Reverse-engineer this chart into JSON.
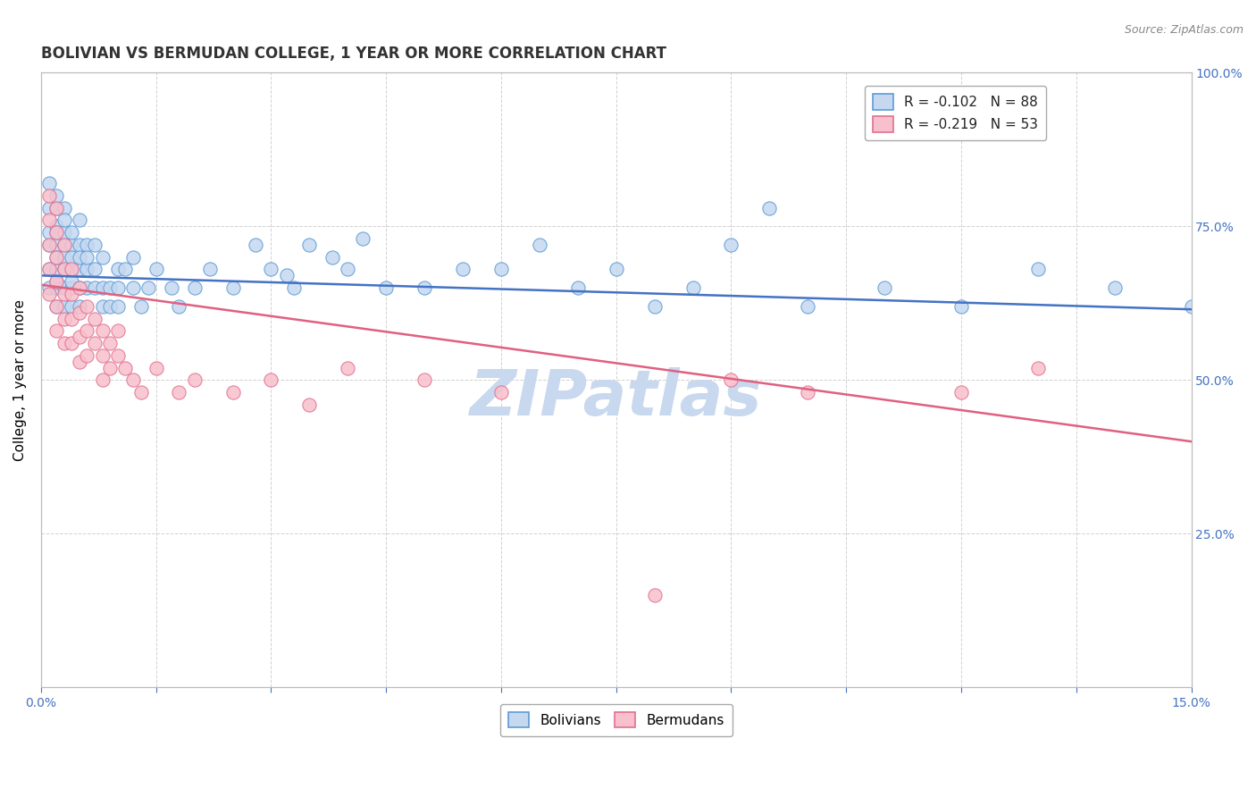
{
  "title": "BOLIVIAN VS BERMUDAN COLLEGE, 1 YEAR OR MORE CORRELATION CHART",
  "source_text": "Source: ZipAtlas.com",
  "ylabel": "College, 1 year or more",
  "xlim": [
    0.0,
    0.15
  ],
  "ylim": [
    0.0,
    1.0
  ],
  "xtick_positions": [
    0.0,
    0.015,
    0.03,
    0.045,
    0.06,
    0.075,
    0.09,
    0.105,
    0.12,
    0.135,
    0.15
  ],
  "xticklabels": [
    "0.0%",
    "",
    "",
    "",
    "",
    "",
    "",
    "",
    "",
    "",
    "15.0%"
  ],
  "ytick_positions": [
    0.0,
    0.25,
    0.5,
    0.75,
    1.0
  ],
  "yticklabels_right": [
    "",
    "25.0%",
    "50.0%",
    "75.0%",
    "100.0%"
  ],
  "legend_line1": "R = -0.102   N = 88",
  "legend_line2": "R = -0.219   N = 53",
  "color_bolivian_fill": "#c5d8f0",
  "color_bolivian_edge": "#5b9bd5",
  "color_bermudan_fill": "#f8c0cc",
  "color_bermudan_edge": "#e07090",
  "line_color_bolivian": "#4472c4",
  "line_color_bermudan": "#e06080",
  "watermark": "ZIPatlas",
  "watermark_color": "#c8d8ee",
  "grid_color": "#cccccc",
  "background_color": "#ffffff",
  "title_fontsize": 12,
  "axis_label_fontsize": 11,
  "tick_fontsize": 10,
  "legend_fontsize": 11,
  "scatter_size": 120,
  "line_y0_bolivian": 0.67,
  "line_y1_bolivian": 0.615,
  "line_y0_bermudan": 0.655,
  "line_y1_bermudan": 0.4,
  "bolivian_x": [
    0.001,
    0.001,
    0.001,
    0.001,
    0.001,
    0.001,
    0.002,
    0.002,
    0.002,
    0.002,
    0.002,
    0.002,
    0.002,
    0.002,
    0.002,
    0.002,
    0.003,
    0.003,
    0.003,
    0.003,
    0.003,
    0.003,
    0.003,
    0.003,
    0.004,
    0.004,
    0.004,
    0.004,
    0.004,
    0.004,
    0.004,
    0.005,
    0.005,
    0.005,
    0.005,
    0.005,
    0.005,
    0.006,
    0.006,
    0.006,
    0.006,
    0.007,
    0.007,
    0.007,
    0.008,
    0.008,
    0.008,
    0.009,
    0.009,
    0.01,
    0.01,
    0.01,
    0.011,
    0.012,
    0.012,
    0.013,
    0.014,
    0.015,
    0.017,
    0.018,
    0.02,
    0.022,
    0.025,
    0.028,
    0.03,
    0.033,
    0.04,
    0.05,
    0.06,
    0.065,
    0.07,
    0.075,
    0.08,
    0.085,
    0.09,
    0.095,
    0.1,
    0.11,
    0.12,
    0.13,
    0.14,
    0.15,
    0.035,
    0.055,
    0.045,
    0.038,
    0.032,
    0.042
  ],
  "bolivian_y": [
    0.72,
    0.68,
    0.65,
    0.78,
    0.74,
    0.82,
    0.75,
    0.72,
    0.68,
    0.65,
    0.62,
    0.78,
    0.8,
    0.7,
    0.66,
    0.74,
    0.72,
    0.68,
    0.65,
    0.62,
    0.7,
    0.74,
    0.78,
    0.76,
    0.72,
    0.68,
    0.65,
    0.62,
    0.7,
    0.74,
    0.66,
    0.68,
    0.65,
    0.62,
    0.72,
    0.7,
    0.76,
    0.68,
    0.65,
    0.72,
    0.7,
    0.65,
    0.68,
    0.72,
    0.62,
    0.65,
    0.7,
    0.65,
    0.62,
    0.68,
    0.65,
    0.62,
    0.68,
    0.65,
    0.7,
    0.62,
    0.65,
    0.68,
    0.65,
    0.62,
    0.65,
    0.68,
    0.65,
    0.72,
    0.68,
    0.65,
    0.68,
    0.65,
    0.68,
    0.72,
    0.65,
    0.68,
    0.62,
    0.65,
    0.72,
    0.78,
    0.62,
    0.65,
    0.62,
    0.68,
    0.65,
    0.62,
    0.72,
    0.68,
    0.65,
    0.7,
    0.67,
    0.73
  ],
  "bermudan_x": [
    0.001,
    0.001,
    0.001,
    0.001,
    0.001,
    0.002,
    0.002,
    0.002,
    0.002,
    0.002,
    0.002,
    0.003,
    0.003,
    0.003,
    0.003,
    0.003,
    0.004,
    0.004,
    0.004,
    0.004,
    0.005,
    0.005,
    0.005,
    0.005,
    0.006,
    0.006,
    0.006,
    0.007,
    0.007,
    0.008,
    0.008,
    0.008,
    0.009,
    0.009,
    0.01,
    0.01,
    0.011,
    0.012,
    0.013,
    0.015,
    0.018,
    0.02,
    0.025,
    0.03,
    0.035,
    0.04,
    0.05,
    0.06,
    0.09,
    0.1,
    0.12,
    0.13,
    0.08
  ],
  "bermudan_y": [
    0.8,
    0.76,
    0.72,
    0.68,
    0.64,
    0.78,
    0.74,
    0.7,
    0.66,
    0.62,
    0.58,
    0.72,
    0.68,
    0.64,
    0.6,
    0.56,
    0.68,
    0.64,
    0.6,
    0.56,
    0.65,
    0.61,
    0.57,
    0.53,
    0.62,
    0.58,
    0.54,
    0.6,
    0.56,
    0.58,
    0.54,
    0.5,
    0.56,
    0.52,
    0.58,
    0.54,
    0.52,
    0.5,
    0.48,
    0.52,
    0.48,
    0.5,
    0.48,
    0.5,
    0.46,
    0.52,
    0.5,
    0.48,
    0.5,
    0.48,
    0.48,
    0.52,
    0.15
  ]
}
